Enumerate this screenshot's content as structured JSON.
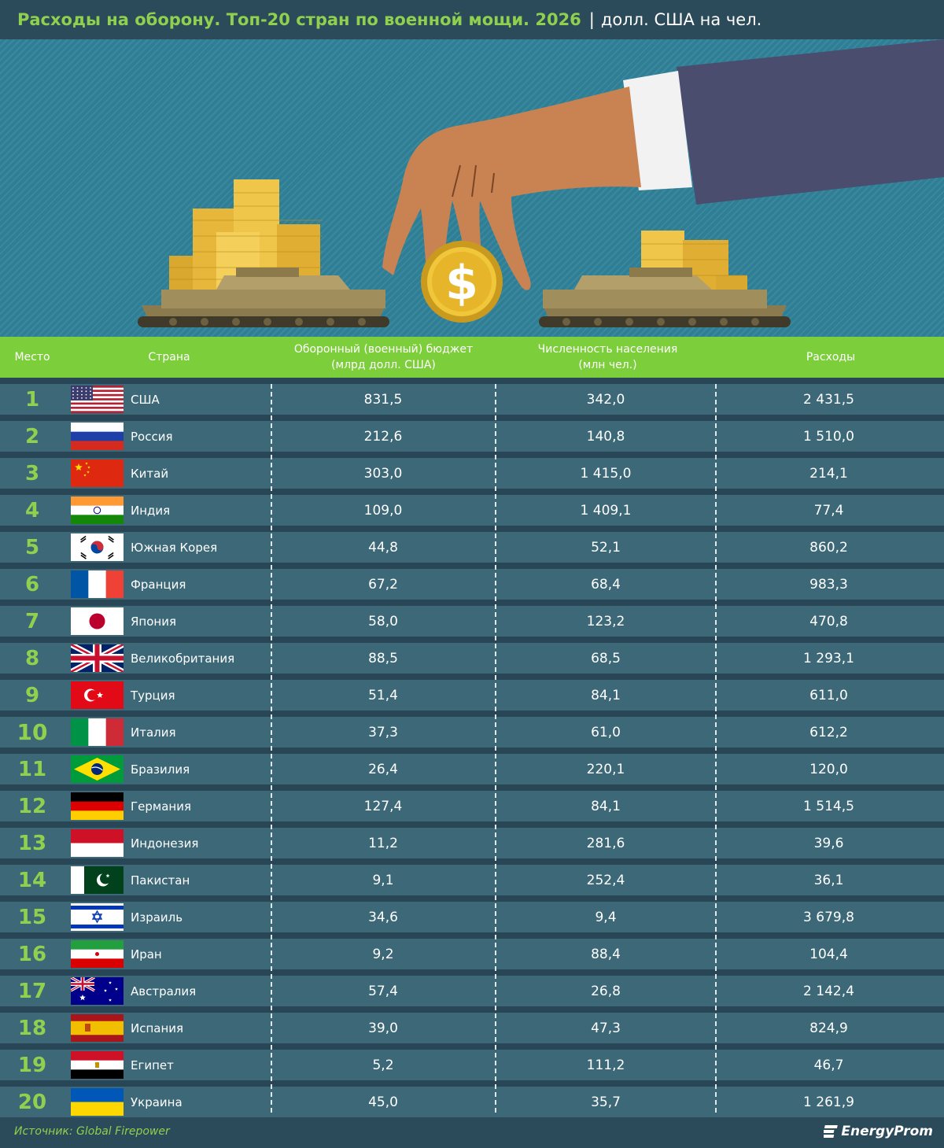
{
  "header": {
    "title": "Расходы на оборону. Топ-20 стран по военной мощи. 2026",
    "separator": "|",
    "unit": "долл. США на чел."
  },
  "colors": {
    "accent_green": "#8fd14f",
    "header_green": "#7ccf3a",
    "row_bg": "#3c6878",
    "page_bg": "#2d4a5c"
  },
  "columns": {
    "rank": "Место",
    "country": "Страна",
    "budget_line1": "Оборонный (военный) бюджет",
    "budget_line2": "(млрд долл. США)",
    "population_line1": "Численность населения",
    "population_line2": "(млн чел.)",
    "spending": "Расходы"
  },
  "chart_data": {
    "type": "table",
    "title": "Расходы на оборону. Топ-20 стран по военной мощи. 2026",
    "rows": [
      {
        "rank": "1",
        "country": "США",
        "flag": "usa-flag",
        "budget": "831,5",
        "population": "342,0",
        "spending": "2 431,5"
      },
      {
        "rank": "2",
        "country": "Россия",
        "flag": "russia-flag",
        "budget": "212,6",
        "population": "140,8",
        "spending": "1 510,0"
      },
      {
        "rank": "3",
        "country": "Китай",
        "flag": "china-flag",
        "budget": "303,0",
        "population": "1 415,0",
        "spending": "214,1"
      },
      {
        "rank": "4",
        "country": "Индия",
        "flag": "india-flag",
        "budget": "109,0",
        "population": "1 409,1",
        "spending": "77,4"
      },
      {
        "rank": "5",
        "country": "Южная Корея",
        "flag": "south-korea-flag",
        "budget": "44,8",
        "population": "52,1",
        "spending": "860,2"
      },
      {
        "rank": "6",
        "country": "Франция",
        "flag": "france-flag",
        "budget": "67,2",
        "population": "68,4",
        "spending": "983,3"
      },
      {
        "rank": "7",
        "country": "Япония",
        "flag": "japan-flag",
        "budget": "58,0",
        "population": "123,2",
        "spending": "470,8"
      },
      {
        "rank": "8",
        "country": "Великобритания",
        "flag": "uk-flag",
        "budget": "88,5",
        "population": "68,5",
        "spending": "1 293,1"
      },
      {
        "rank": "9",
        "country": "Турция",
        "flag": "turkey-flag",
        "budget": "51,4",
        "population": "84,1",
        "spending": "611,0"
      },
      {
        "rank": "10",
        "country": "Италия",
        "flag": "italy-flag",
        "budget": "37,3",
        "population": "61,0",
        "spending": "612,2"
      },
      {
        "rank": "11",
        "country": "Бразилия",
        "flag": "brazil-flag",
        "budget": "26,4",
        "population": "220,1",
        "spending": "120,0"
      },
      {
        "rank": "12",
        "country": "Германия",
        "flag": "germany-flag",
        "budget": "127,4",
        "population": "84,1",
        "spending": "1 514,5"
      },
      {
        "rank": "13",
        "country": "Индонезия",
        "flag": "indonesia-flag",
        "budget": "11,2",
        "population": "281,6",
        "spending": "39,6"
      },
      {
        "rank": "14",
        "country": "Пакистан",
        "flag": "pakistan-flag",
        "budget": "9,1",
        "population": "252,4",
        "spending": "36,1"
      },
      {
        "rank": "15",
        "country": "Израиль",
        "flag": "israel-flag",
        "budget": "34,6",
        "population": "9,4",
        "spending": "3 679,8"
      },
      {
        "rank": "16",
        "country": "Иран",
        "flag": "iran-flag",
        "budget": "9,2",
        "population": "88,4",
        "spending": "104,4"
      },
      {
        "rank": "17",
        "country": "Австралия",
        "flag": "australia-flag",
        "budget": "57,4",
        "population": "26,8",
        "spending": "2 142,4"
      },
      {
        "rank": "18",
        "country": "Испания",
        "flag": "spain-flag",
        "budget": "39,0",
        "population": "47,3",
        "spending": "824,9"
      },
      {
        "rank": "19",
        "country": "Египет",
        "flag": "egypt-flag",
        "budget": "5,2",
        "population": "111,2",
        "spending": "46,7"
      },
      {
        "rank": "20",
        "country": "Украина",
        "flag": "ukraine-flag",
        "budget": "45,0",
        "population": "35,7",
        "spending": "1 261,9"
      }
    ]
  },
  "illustration": {
    "coin_symbol": "$",
    "icons": [
      "hand-icon",
      "coin-stack-icon",
      "tank-icon",
      "dollar-coin-icon"
    ]
  },
  "footer": {
    "source": "Источник: Global Firepower",
    "brand": "EnergyProm"
  }
}
